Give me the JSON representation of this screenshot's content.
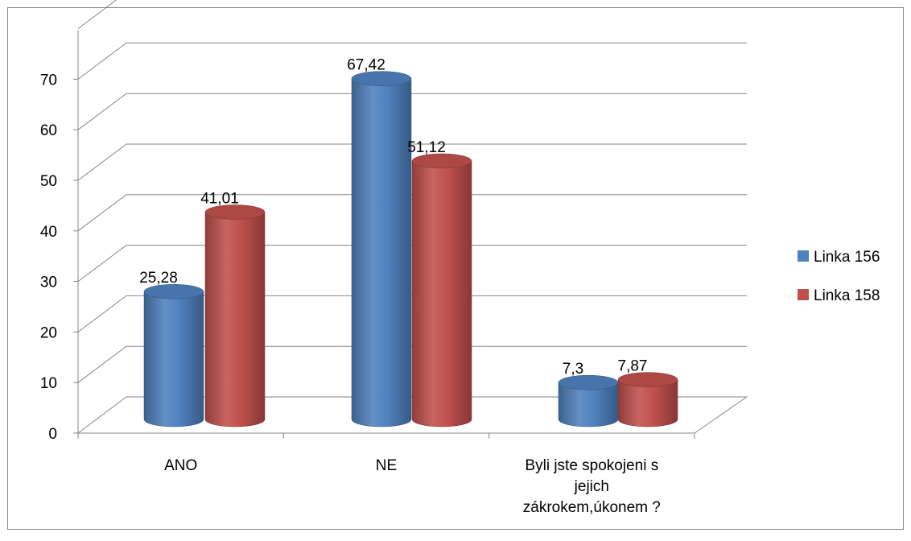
{
  "chart_data": {
    "type": "bar",
    "style": "3d-cylinder",
    "categories": [
      "ANO",
      "NE",
      "Byli jste spokojeni s jejich zákrokem,úkonem ?"
    ],
    "category_lines": [
      [
        "ANO"
      ],
      [
        "NE"
      ],
      [
        "Byli jste spokojeni s",
        "jejich",
        "zákrokem,úkonem ?"
      ]
    ],
    "series": [
      {
        "name": "Linka 156",
        "values": [
          25.28,
          67.42,
          7.3
        ],
        "labels": [
          "25,28",
          "67,42",
          "7,3"
        ],
        "color": "#4f81bd"
      },
      {
        "name": "Linka 158",
        "values": [
          41.01,
          51.12,
          7.87
        ],
        "labels": [
          "41,01",
          "51,12",
          "7,87"
        ],
        "color": "#c0504d"
      }
    ],
    "yticks": [
      0,
      10,
      20,
      30,
      40,
      50,
      60,
      70
    ],
    "ylim": [
      0,
      70
    ],
    "grid": true,
    "legend_position": "right"
  }
}
